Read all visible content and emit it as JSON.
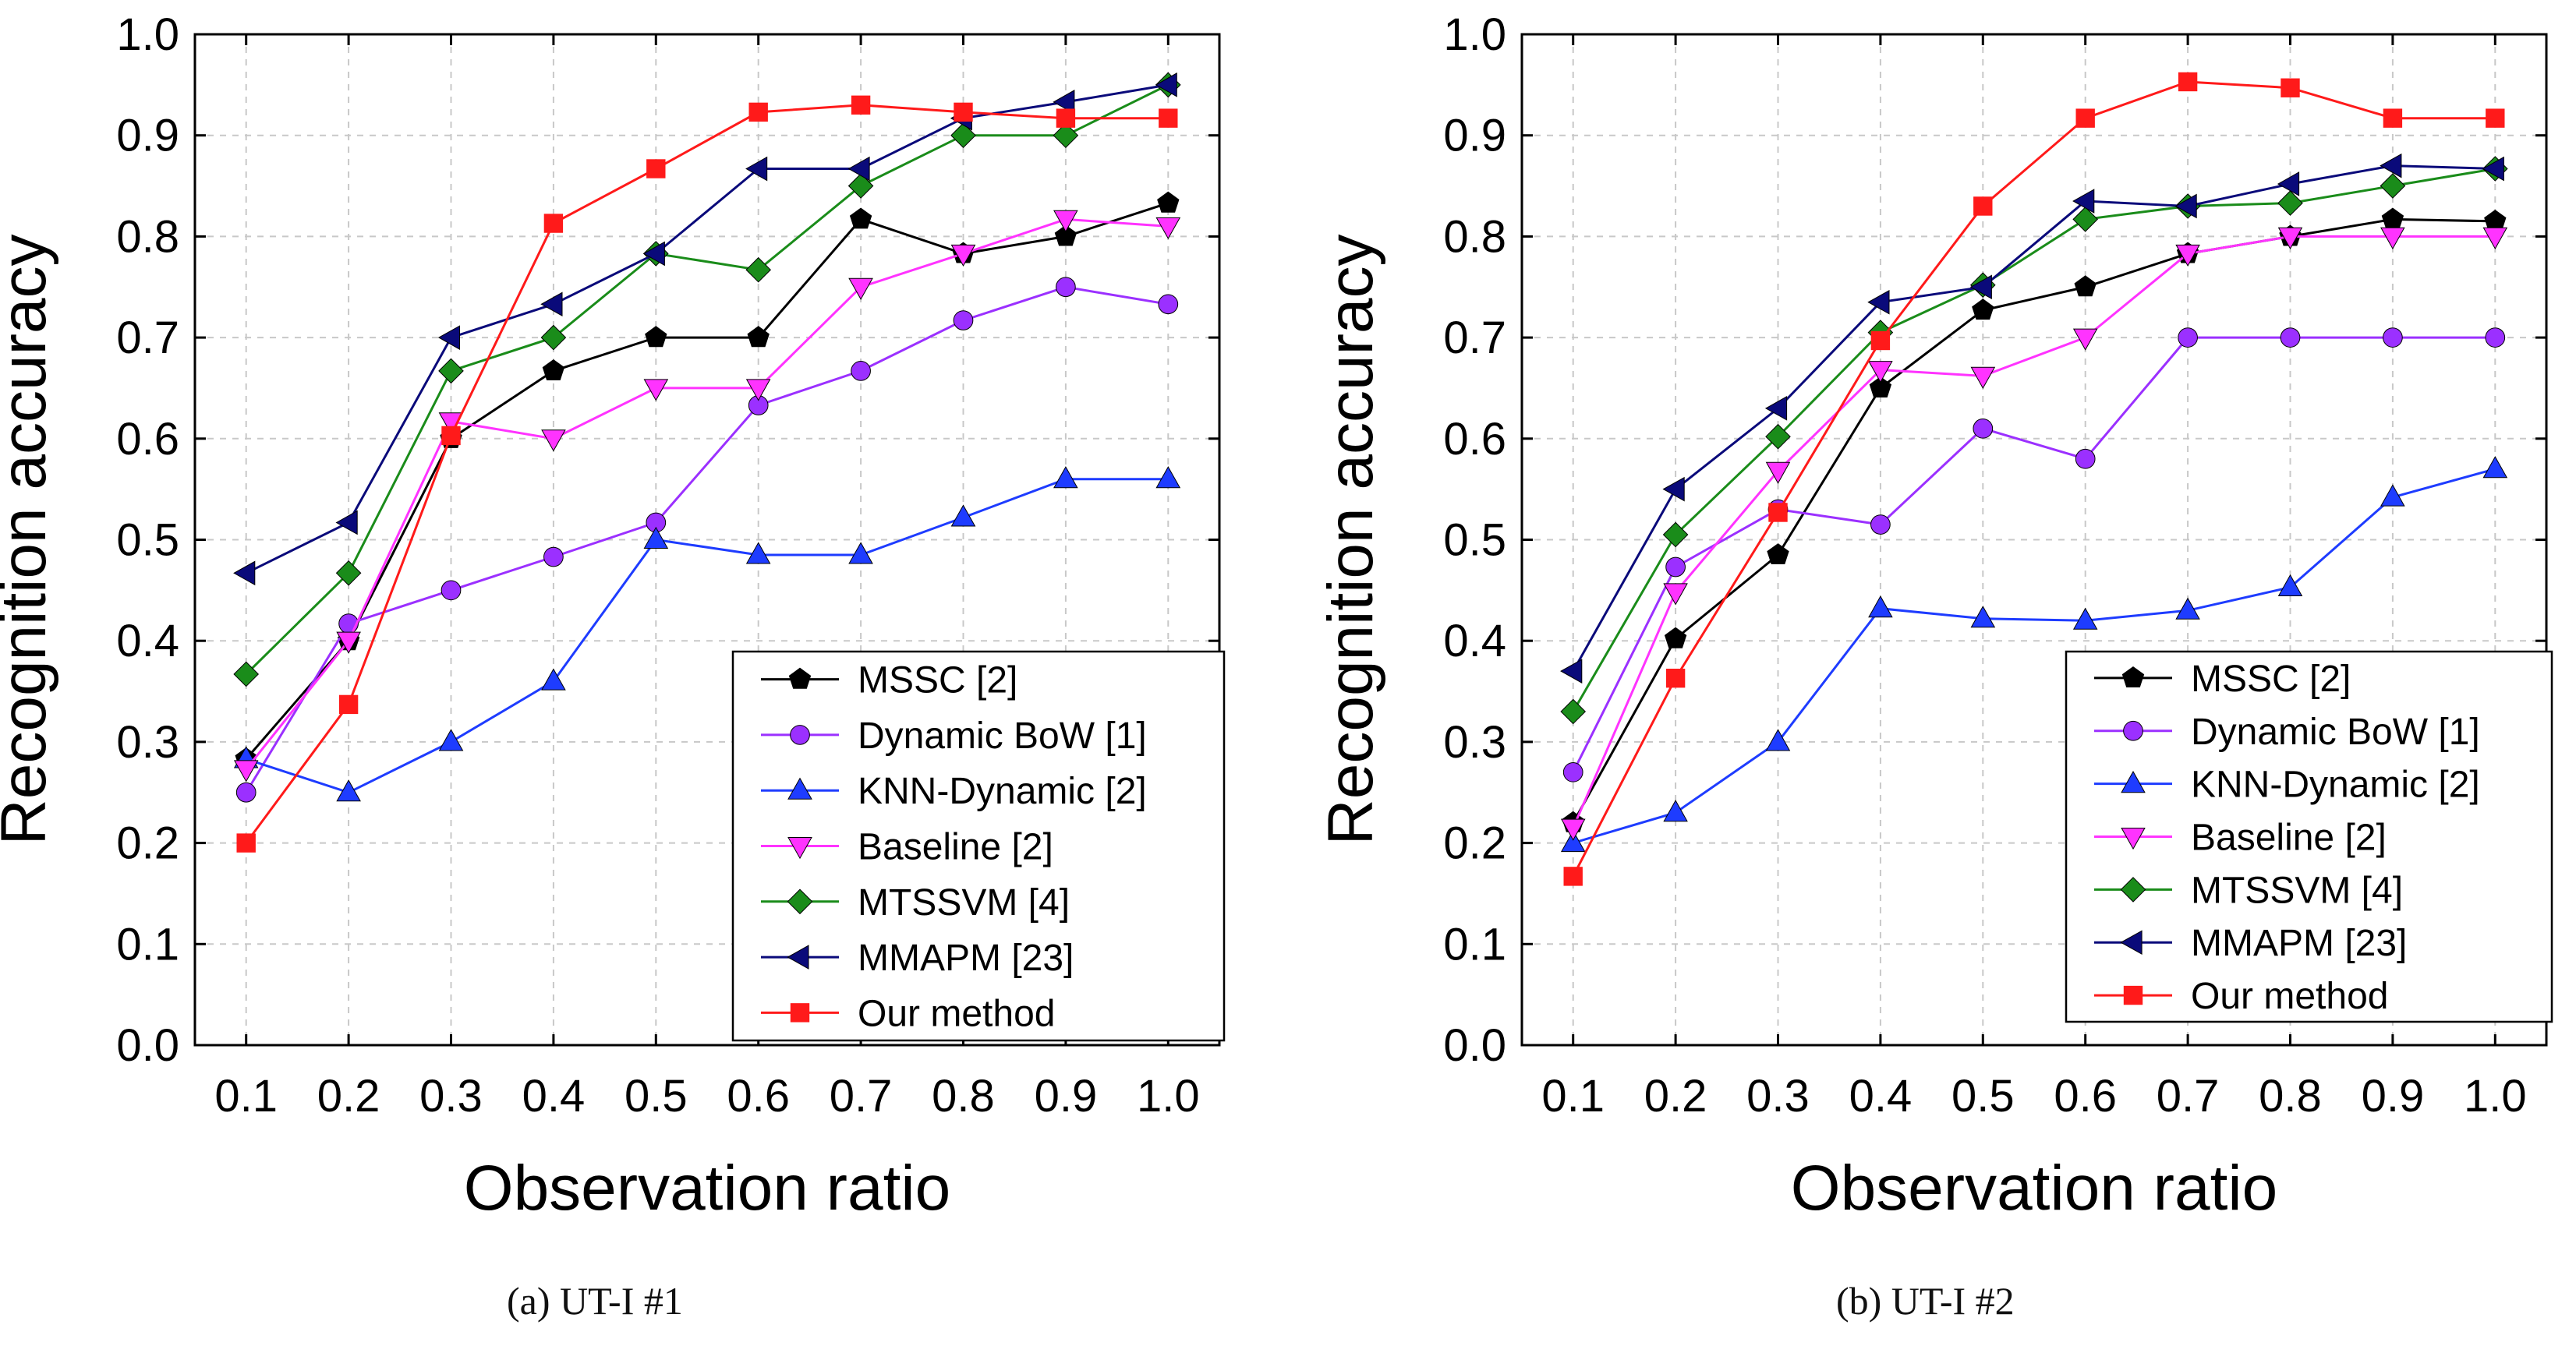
{
  "captions": [
    "(a)  UT-I #1",
    "(b)  UT-I #2"
  ],
  "legend_style": {
    "MSSC [2]": {
      "color": "#000000",
      "marker": "pentagon"
    },
    "Dynamic BoW [1]": {
      "color": "#9B30FF",
      "marker": "circle"
    },
    "KNN-Dynamic [2]": {
      "color": "#1E3CFF",
      "marker": "triangle-up"
    },
    "Baseline [2]": {
      "color": "#FF33FF",
      "marker": "triangle-down"
    },
    "MTSSVM [4]": {
      "color": "#1A8C1A",
      "marker": "diamond"
    },
    "MMAPM [23]": {
      "color": "#0A0A7A",
      "marker": "triangle-left"
    },
    "Our method": {
      "color": "#FF1A1A",
      "marker": "square"
    }
  },
  "chart_data": [
    {
      "type": "line",
      "title": "",
      "xlabel": "Observation ratio",
      "ylabel": "Recognition accuracy",
      "x": [
        0.1,
        0.2,
        0.3,
        0.4,
        0.5,
        0.6,
        0.7,
        0.8,
        0.9,
        1.0
      ],
      "xticks": [
        "0.1",
        "0.2",
        "0.3",
        "0.4",
        "0.5",
        "0.6",
        "0.7",
        "0.8",
        "0.9",
        "1.0"
      ],
      "yticks": [
        "0.0",
        "0.1",
        "0.2",
        "0.3",
        "0.4",
        "0.5",
        "0.6",
        "0.7",
        "0.8",
        "0.9",
        "1.0"
      ],
      "ylim": [
        0,
        1.0
      ],
      "grid": true,
      "legend_position": "bottom-right",
      "series": [
        {
          "name": "MSSC [2]",
          "values": [
            0.283,
            0.4,
            0.6,
            0.667,
            0.7,
            0.7,
            0.817,
            0.783,
            0.8,
            0.833
          ]
        },
        {
          "name": "Dynamic BoW [1]",
          "values": [
            0.25,
            0.417,
            0.45,
            0.483,
            0.517,
            0.633,
            0.667,
            0.717,
            0.75,
            0.733
          ]
        },
        {
          "name": "KNN-Dynamic [2]",
          "values": [
            0.283,
            0.25,
            0.3,
            0.36,
            0.5,
            0.485,
            0.485,
            0.522,
            0.56,
            0.56
          ]
        },
        {
          "name": "Baseline [2]",
          "values": [
            0.273,
            0.4,
            0.617,
            0.6,
            0.65,
            0.65,
            0.75,
            0.783,
            0.817,
            0.81
          ]
        },
        {
          "name": "MTSSVM [4]",
          "values": [
            0.367,
            0.467,
            0.667,
            0.7,
            0.783,
            0.767,
            0.85,
            0.9,
            0.9,
            0.95
          ]
        },
        {
          "name": "MMAPM [23]",
          "values": [
            0.467,
            0.517,
            0.7,
            0.733,
            0.783,
            0.867,
            0.867,
            0.917,
            0.933,
            0.95
          ]
        },
        {
          "name": "Our method",
          "values": [
            0.2,
            0.337,
            0.603,
            0.813,
            0.867,
            0.923,
            0.93,
            0.923,
            0.917,
            0.917
          ]
        }
      ]
    },
    {
      "type": "line",
      "title": "",
      "xlabel": "Observation ratio",
      "ylabel": "Recognition accuracy",
      "x": [
        0.1,
        0.2,
        0.3,
        0.4,
        0.5,
        0.6,
        0.7,
        0.8,
        0.9,
        1.0
      ],
      "xticks": [
        "0.1",
        "0.2",
        "0.3",
        "0.4",
        "0.5",
        "0.6",
        "0.7",
        "0.8",
        "0.9",
        "1.0"
      ],
      "yticks": [
        "0.0",
        "0.1",
        "0.2",
        "0.3",
        "0.4",
        "0.5",
        "0.6",
        "0.7",
        "0.8",
        "0.9",
        "1.0"
      ],
      "ylim": [
        0,
        1.0
      ],
      "grid": true,
      "legend_position": "bottom-right",
      "series": [
        {
          "name": "MSSC [2]",
          "values": [
            0.22,
            0.402,
            0.485,
            0.65,
            0.727,
            0.75,
            0.783,
            0.8,
            0.817,
            0.815
          ]
        },
        {
          "name": "Dynamic BoW [1]",
          "values": [
            0.27,
            0.473,
            0.53,
            0.515,
            0.61,
            0.58,
            0.7,
            0.7,
            0.7,
            0.7
          ]
        },
        {
          "name": "KNN-Dynamic [2]",
          "values": [
            0.2,
            0.23,
            0.3,
            0.432,
            0.422,
            0.42,
            0.43,
            0.453,
            0.542,
            0.57
          ]
        },
        {
          "name": "Baseline [2]",
          "values": [
            0.215,
            0.448,
            0.568,
            0.668,
            0.662,
            0.7,
            0.783,
            0.8,
            0.8,
            0.8
          ]
        },
        {
          "name": "MTSSVM [4]",
          "values": [
            0.33,
            0.505,
            0.602,
            0.705,
            0.752,
            0.817,
            0.83,
            0.833,
            0.85,
            0.867
          ]
        },
        {
          "name": "MMAPM [23]",
          "values": [
            0.37,
            0.55,
            0.63,
            0.735,
            0.75,
            0.835,
            0.83,
            0.852,
            0.87,
            0.867
          ]
        },
        {
          "name": "Our method",
          "values": [
            0.167,
            0.363,
            0.527,
            0.697,
            0.83,
            0.917,
            0.953,
            0.947,
            0.917,
            0.917
          ]
        }
      ]
    }
  ]
}
